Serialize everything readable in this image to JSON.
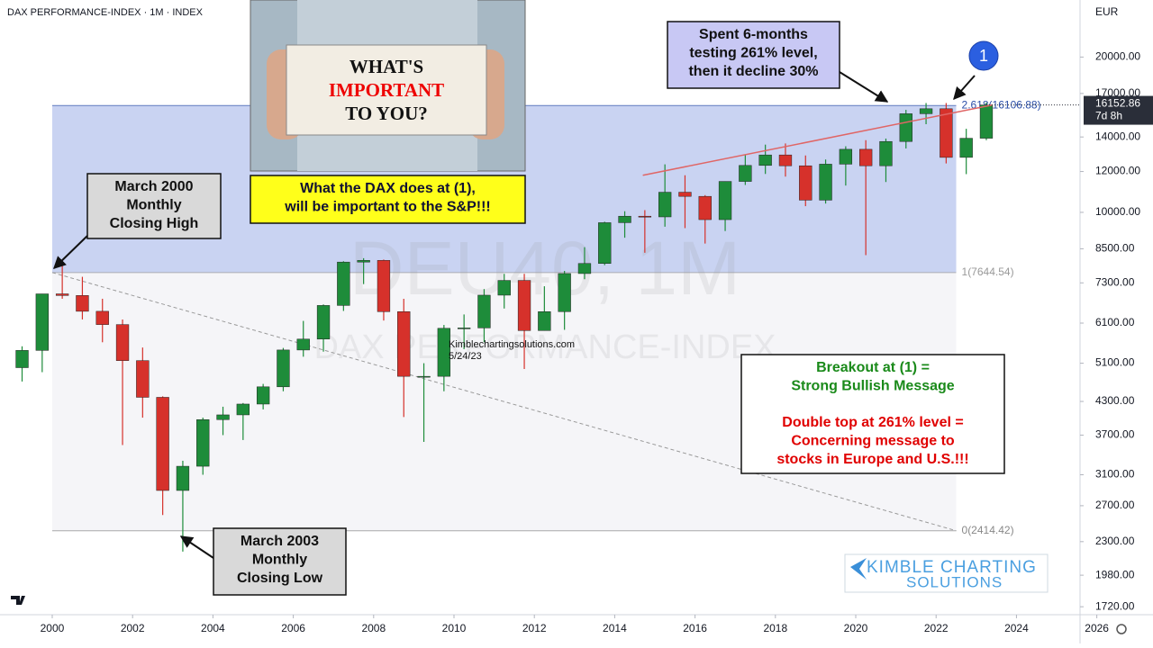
{
  "chart_data": {
    "type": "candlestick",
    "title": "DAX PERFORMANCE-INDEX · 1M · INDEX",
    "currency": "EUR",
    "log_scale": true,
    "xlim": [
      1998.7,
      2025.56
    ],
    "xticks": [
      2000,
      2002,
      2004,
      2006,
      2008,
      2010,
      2012,
      2014,
      2016,
      2018,
      2020,
      2022,
      2024,
      2026
    ],
    "ylim": [
      1660,
      25800
    ],
    "yticks": [
      {
        "value": 1720,
        "label": "1720.00"
      },
      {
        "value": 1980,
        "label": "1980.00"
      },
      {
        "value": 2300,
        "label": "2300.00"
      },
      {
        "value": 2700,
        "label": "2700.00"
      },
      {
        "value": 3100,
        "label": "3100.00"
      },
      {
        "value": 3700,
        "label": "3700.00"
      },
      {
        "value": 4300,
        "label": "4300.00"
      },
      {
        "value": 5100,
        "label": "5100.00"
      },
      {
        "value": 6100,
        "label": "6100.00"
      },
      {
        "value": 7300,
        "label": "7300.00"
      },
      {
        "value": 8500,
        "label": "8500.00"
      },
      {
        "value": 10000,
        "label": "10000.00"
      },
      {
        "value": 12000,
        "label": "12000.00"
      },
      {
        "value": 14000,
        "label": "14000.00"
      },
      {
        "value": 17000,
        "label": "17000.00"
      },
      {
        "value": 20000,
        "label": "20000.00"
      }
    ],
    "up_color": "#1e8c3a",
    "down_color": "#d6312b",
    "x": [
      1999.25,
      1999.75,
      2000.25,
      2000.75,
      2001.25,
      2001.75,
      2002.25,
      2002.75,
      2003.25,
      2003.75,
      2004.25,
      2004.75,
      2005.25,
      2005.75,
      2006.25,
      2006.75,
      2007.25,
      2007.75,
      2008.25,
      2008.75,
      2009.25,
      2009.75,
      2010.25,
      2010.75,
      2011.25,
      2011.75,
      2012.25,
      2012.75,
      2013.25,
      2013.75,
      2014.25,
      2014.75,
      2015.25,
      2015.75,
      2016.25,
      2016.75,
      2017.25,
      2017.75,
      2018.25,
      2018.75,
      2019.25,
      2019.75,
      2020.25,
      2020.75,
      2021.25,
      2021.75,
      2022.25,
      2022.75,
      2023.25
    ],
    "open": [
      5000,
      5400,
      6950,
      6900,
      6430,
      6060,
      5160,
      4380,
      2890,
      3220,
      3965,
      4050,
      4250,
      4590,
      5410,
      5680,
      6600,
      8010,
      8070,
      6420,
      4810,
      4810,
      5960,
      5970,
      6910,
      7380,
      5900,
      6420,
      7610,
      7960,
      9550,
      9830,
      9800,
      10940,
      10740,
      9680,
      11480,
      12330,
      12920,
      12310,
      10560,
      12400,
      13250,
      12310,
      13720,
      15530,
      15880,
      12780,
      13920
    ],
    "high": [
      5500,
      6950,
      8065,
      7500,
      6800,
      6200,
      5470,
      4400,
      3300,
      4000,
      4200,
      4270,
      4650,
      5460,
      6160,
      6630,
      8040,
      8150,
      8100,
      6800,
      5100,
      6050,
      6340,
      7100,
      7600,
      7600,
      7190,
      7700,
      8560,
      9590,
      10050,
      10100,
      12390,
      11800,
      10800,
      11480,
      12950,
      13530,
      13600,
      12890,
      12660,
      13430,
      13800,
      13900,
      15800,
      16290,
      16290,
      14520,
      16330
    ],
    "low": [
      4700,
      4900,
      6800,
      6200,
      5600,
      3540,
      4000,
      2590,
      2200,
      3100,
      3700,
      3620,
      4150,
      4500,
      5250,
      5370,
      6440,
      7260,
      6170,
      4010,
      3590,
      4500,
      5430,
      5600,
      6510,
      4970,
      5900,
      5920,
      7420,
      7900,
      8930,
      8350,
      9380,
      9320,
      8700,
      9200,
      11300,
      11870,
      11730,
      10280,
      10400,
      11270,
      8260,
      11450,
      13300,
      14820,
      12440,
      11860,
      13800
    ],
    "close": [
      5400,
      6950,
      6900,
      6430,
      6060,
      5160,
      4380,
      2890,
      3220,
      3965,
      4050,
      4250,
      4590,
      5410,
      5680,
      6600,
      8010,
      8070,
      6420,
      4810,
      4810,
      5960,
      5970,
      6910,
      7380,
      5900,
      6420,
      7610,
      7960,
      9550,
      9830,
      9800,
      10940,
      10740,
      9680,
      11480,
      12330,
      12920,
      12310,
      10560,
      12400,
      13250,
      12310,
      13720,
      15530,
      15880,
      12780,
      13920,
      16150
    ],
    "fib_range": [
      2000.0,
      2022.5
    ],
    "levels": [
      {
        "value": 2414.42,
        "label": "0(2414.42)",
        "color": "#888888"
      },
      {
        "value": 7644.54,
        "label": "1(7644.54)",
        "color": "#999999"
      },
      {
        "value": 16106.88,
        "label": "2.618(16106.88)",
        "color": "#2b4fa8"
      }
    ],
    "zone_colors": [
      "#f5f5f8",
      "#c9d3f2"
    ],
    "trendline": {
      "x": [
        2014.7,
        2023.4
      ],
      "values": [
        11800,
        16150
      ],
      "color": "#e06666"
    },
    "dashed_line": {
      "x": [
        2000.0,
        2022.5
      ],
      "values": [
        7644.54,
        2414.42
      ],
      "color": "#999999"
    },
    "last_price": {
      "value": 16152.86,
      "label": "16152.86",
      "countdown": "7d 8h"
    },
    "watermark": [
      "DEU40, 1M",
      "DAX PERFORMANCE-INDEX"
    ],
    "source": [
      "Kimblechartingsolutions.com",
      "5/24/23"
    ],
    "logo": [
      "KIMBLE CHARTING",
      "SOLUTIONS"
    ],
    "marker": "1",
    "inset": [
      "WHAT'S",
      "IMPORTANT",
      "TO YOU?"
    ],
    "annotations": [
      {
        "lines": [
          {
            "text": "March 2000",
            "color": "#111111"
          },
          {
            "text": "Monthly",
            "color": "#111111"
          },
          {
            "text": "Closing High",
            "color": "#111111"
          }
        ],
        "fill": "#d9d9d9"
      },
      {
        "lines": [
          {
            "text": "March 2003",
            "color": "#111111"
          },
          {
            "text": "Monthly",
            "color": "#111111"
          },
          {
            "text": "Closing Low",
            "color": "#111111"
          }
        ],
        "fill": "#d9d9d9"
      },
      {
        "lines": [
          {
            "text": "Spent 6-months",
            "color": "#111111"
          },
          {
            "text": "testing 261% level,",
            "color": "#111111"
          },
          {
            "text": "then it decline 30%",
            "color": "#111111"
          }
        ],
        "fill": "#c8c8f4"
      },
      {
        "lines": [
          {
            "text": "What the DAX does at (1),",
            "color": "#111133"
          },
          {
            "text": "will be important to the S&P!!!",
            "color": "#111133"
          }
        ],
        "fill": "#ffff1a"
      },
      {
        "lines": [
          {
            "text": "Breakout at (1) =",
            "color": "#1a8a1a"
          },
          {
            "text": "Strong Bullish Message",
            "color": "#1a8a1a"
          },
          {
            "text": "Double top at 261% level =",
            "color": "#e00000"
          },
          {
            "text": "Concerning message to",
            "color": "#e00000"
          },
          {
            "text": "stocks in Europe and U.S.!!!",
            "color": "#e00000"
          }
        ],
        "fill": "#ffffff"
      }
    ]
  }
}
